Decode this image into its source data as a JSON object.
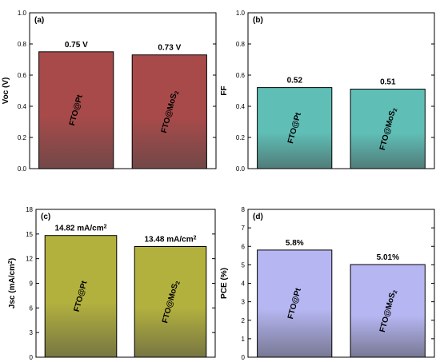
{
  "chart_data": [
    {
      "type": "bar",
      "panel_label": "(a)",
      "ylabel": "Voc (V)",
      "ylim": [
        0,
        1.0
      ],
      "yticks": [
        "0.0",
        "0.2",
        "0.4",
        "0.6",
        "0.8",
        "1.0"
      ],
      "categories": [
        "FTO@Pt",
        "FTO@MoS2"
      ],
      "values": [
        0.75,
        0.73
      ],
      "data_labels": [
        "0.75 V",
        "0.73 V"
      ],
      "bar_color": "#a84a4a"
    },
    {
      "type": "bar",
      "panel_label": "(b)",
      "ylabel": "FF",
      "ylim": [
        0,
        1.0
      ],
      "yticks": [
        "0.0",
        "0.2",
        "0.4",
        "0.6",
        "0.8",
        "1.0"
      ],
      "categories": [
        "FTO@Pt",
        "FTO@MoS2"
      ],
      "values": [
        0.52,
        0.51
      ],
      "data_labels": [
        "0.52",
        "0.51"
      ],
      "bar_color": "#5fbfb7"
    },
    {
      "type": "bar",
      "panel_label": "(c)",
      "ylabel": "Jsc (mA/cm2)",
      "ylim": [
        0,
        18
      ],
      "yticks": [
        "0",
        "3",
        "6",
        "9",
        "12",
        "15",
        "18"
      ],
      "categories": [
        "FTO@Pt",
        "FTO@MoS2"
      ],
      "values": [
        14.82,
        13.48
      ],
      "data_labels": [
        "14.82 mA/cm2",
        "13.48 mA/cm2"
      ],
      "bar_color": "#b3b13e"
    },
    {
      "type": "bar",
      "panel_label": "(d)",
      "ylabel": "PCE (%)",
      "ylim": [
        0,
        8
      ],
      "yticks": [
        "0",
        "1",
        "2",
        "3",
        "4",
        "5",
        "6",
        "7",
        "8"
      ],
      "categories": [
        "FTO@Pt",
        "FTO@MoS2"
      ],
      "values": [
        5.8,
        5.01
      ],
      "data_labels": [
        "5.8%",
        "5.01%"
      ],
      "bar_color": "#b6b6f3"
    }
  ]
}
